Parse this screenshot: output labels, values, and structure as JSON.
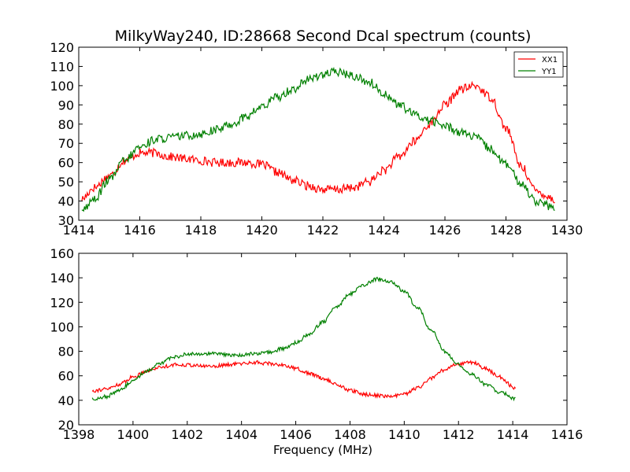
{
  "title": "MilkyWay240, ID:28668 Second Dcal spectrum (counts)",
  "chart_data": [
    {
      "type": "line",
      "title": "MilkyWay240, ID:28668 Second Dcal spectrum (counts)",
      "xlabel": "",
      "ylabel": "",
      "xlim": [
        1414,
        1430
      ],
      "ylim": [
        30,
        120
      ],
      "xticks": [
        "1414",
        "1416",
        "1418",
        "1420",
        "1422",
        "1424",
        "1426",
        "1428",
        "1430"
      ],
      "yticks": [
        "30",
        "40",
        "50",
        "60",
        "70",
        "80",
        "90",
        "100",
        "110",
        "120"
      ],
      "legend": {
        "position": "top-right",
        "entries": [
          "XX1",
          "YY1"
        ]
      },
      "grid": false,
      "series": [
        {
          "name": "XX1",
          "color": "#ff0000",
          "x": [
            1414.1,
            1414.5,
            1415.0,
            1415.5,
            1416.0,
            1416.5,
            1417.0,
            1417.5,
            1418.0,
            1418.5,
            1419.0,
            1419.5,
            1420.0,
            1420.5,
            1421.0,
            1421.5,
            1422.0,
            1422.5,
            1423.0,
            1423.5,
            1424.0,
            1424.5,
            1425.0,
            1425.5,
            1426.0,
            1426.5,
            1427.0,
            1427.5,
            1428.0,
            1428.5,
            1429.0,
            1429.6
          ],
          "y": [
            41,
            47,
            53,
            61,
            65,
            65,
            63,
            62,
            61,
            60,
            60,
            60,
            59,
            55,
            51,
            48,
            46,
            46,
            47,
            50,
            56,
            63,
            71,
            80,
            90,
            98,
            100,
            94,
            78,
            58,
            45,
            41
          ]
        },
        {
          "name": "YY1",
          "color": "#008000",
          "x": [
            1414.1,
            1414.5,
            1415.0,
            1415.5,
            1416.0,
            1416.5,
            1417.0,
            1417.5,
            1418.0,
            1418.5,
            1419.0,
            1419.5,
            1420.0,
            1420.5,
            1421.0,
            1421.5,
            1422.0,
            1422.5,
            1423.0,
            1423.5,
            1424.0,
            1424.5,
            1425.0,
            1425.5,
            1426.0,
            1426.5,
            1427.0,
            1427.5,
            1428.0,
            1428.5,
            1429.0,
            1429.6
          ],
          "y": [
            35,
            41,
            51,
            61,
            68,
            72,
            73,
            74,
            75,
            77,
            80,
            84,
            89,
            94,
            98,
            103,
            106,
            107,
            105,
            102,
            96,
            90,
            85,
            82,
            79,
            76,
            73,
            67,
            59,
            49,
            40,
            36
          ]
        }
      ]
    },
    {
      "type": "line",
      "title": "",
      "xlabel": "Frequency (MHz)",
      "ylabel": "",
      "xlim": [
        1398,
        1416
      ],
      "ylim": [
        20,
        160
      ],
      "xticks": [
        "1398",
        "1400",
        "1402",
        "1404",
        "1406",
        "1408",
        "1410",
        "1412",
        "1414",
        "1416"
      ],
      "yticks": [
        "20",
        "40",
        "60",
        "80",
        "100",
        "120",
        "140",
        "160"
      ],
      "grid": false,
      "series": [
        {
          "color": "#ff0000",
          "x": [
            1398.5,
            1399.0,
            1399.5,
            1400.0,
            1400.5,
            1401.0,
            1401.5,
            1402.0,
            1402.5,
            1403.0,
            1403.5,
            1404.0,
            1404.5,
            1405.0,
            1405.5,
            1406.0,
            1406.5,
            1407.0,
            1407.5,
            1408.0,
            1408.5,
            1409.0,
            1409.5,
            1410.0,
            1410.5,
            1411.0,
            1411.5,
            1412.0,
            1412.5,
            1413.0,
            1413.5,
            1414.1
          ],
          "y": [
            48,
            49,
            53,
            59,
            64,
            67,
            69,
            69,
            68,
            68,
            69,
            70,
            71,
            70,
            69,
            66,
            62,
            58,
            53,
            48,
            45,
            44,
            43,
            45,
            50,
            58,
            65,
            70,
            71,
            66,
            59,
            50
          ]
        },
        {
          "color": "#008000",
          "x": [
            1398.5,
            1399.0,
            1399.5,
            1400.0,
            1400.5,
            1401.0,
            1401.5,
            1402.0,
            1402.5,
            1403.0,
            1403.5,
            1404.0,
            1404.5,
            1405.0,
            1405.5,
            1406.0,
            1406.5,
            1407.0,
            1407.5,
            1408.0,
            1408.5,
            1409.0,
            1409.5,
            1410.0,
            1410.5,
            1411.0,
            1411.5,
            1412.0,
            1412.5,
            1413.0,
            1413.5,
            1414.1
          ],
          "y": [
            41,
            43,
            48,
            56,
            64,
            70,
            75,
            78,
            78,
            78,
            77,
            77,
            78,
            79,
            82,
            87,
            94,
            104,
            116,
            127,
            134,
            139,
            137,
            129,
            115,
            97,
            80,
            69,
            61,
            53,
            47,
            41
          ]
        }
      ]
    }
  ]
}
